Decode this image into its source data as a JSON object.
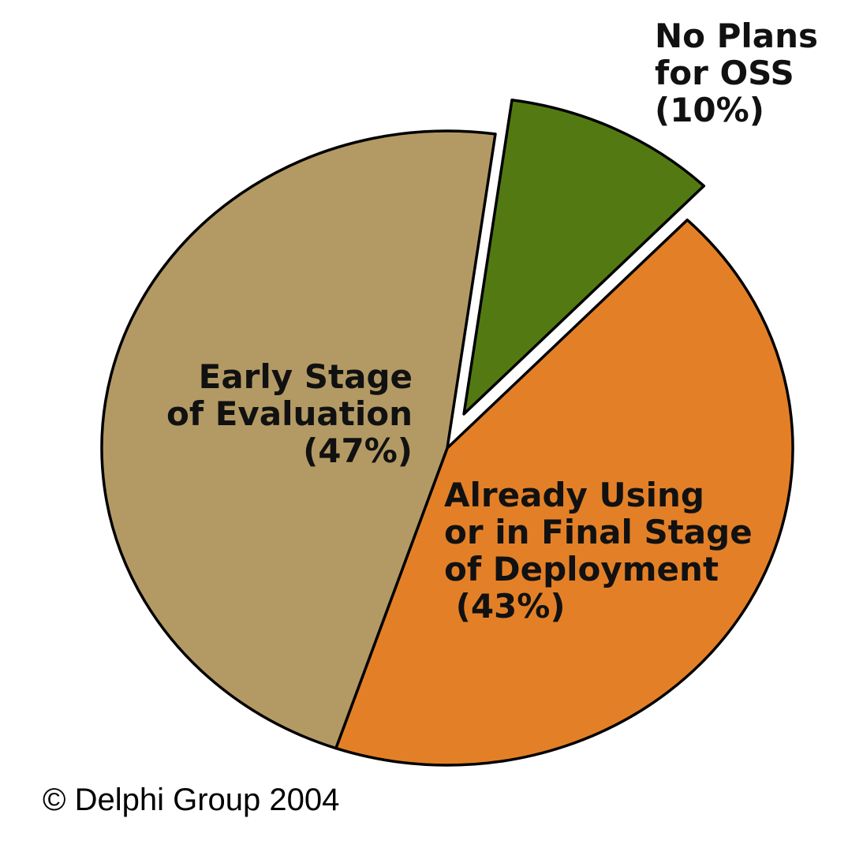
{
  "chart_data": {
    "type": "pie",
    "slices": [
      {
        "key": "already-using",
        "label_lines": [
          "Already Using",
          "or in Final Stage",
          "of Deployment",
          " (43%)"
        ],
        "value": 43,
        "color": "#e38027",
        "exploded": false
      },
      {
        "key": "early-stage",
        "label_lines": [
          "Early Stage",
          "of Evaluation",
          "(47%)"
        ],
        "value": 47,
        "color": "#b39a64",
        "exploded": false
      },
      {
        "key": "no-plans",
        "label_lines": [
          "No Plans",
          "for OSS",
          "(10%)"
        ],
        "value": 10,
        "color": "#537a12",
        "exploded": true
      }
    ]
  },
  "copyright": "© Delphi Group 2004"
}
